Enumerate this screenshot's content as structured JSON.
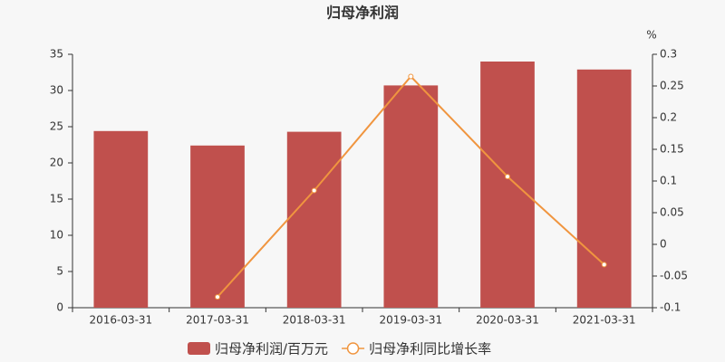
{
  "chart_data": {
    "type": "bar",
    "title": "归母净利润",
    "categories": [
      "2016-03-31",
      "2017-03-31",
      "2018-03-31",
      "2019-03-31",
      "2020-03-31",
      "2021-03-31"
    ],
    "series": [
      {
        "name": "归母净利润/百万元",
        "type": "bar",
        "color": "#c0504d",
        "values": [
          24.4,
          22.4,
          24.3,
          30.7,
          34.0,
          32.9
        ]
      },
      {
        "name": "归母净利同比增长率",
        "type": "line",
        "axis": "y2",
        "color": "#f0953f",
        "values": [
          null,
          -0.083,
          0.085,
          0.265,
          0.107,
          -0.032
        ]
      }
    ],
    "ylim": [
      0,
      35
    ],
    "yticks": [
      0,
      5,
      10,
      15,
      20,
      25,
      30,
      35
    ],
    "y2lim": [
      -0.1,
      0.3
    ],
    "y2ticks": [
      -0.1,
      -0.05,
      0,
      0.05,
      0.1,
      0.15,
      0.2,
      0.25,
      0.3
    ],
    "y2label": "%"
  }
}
